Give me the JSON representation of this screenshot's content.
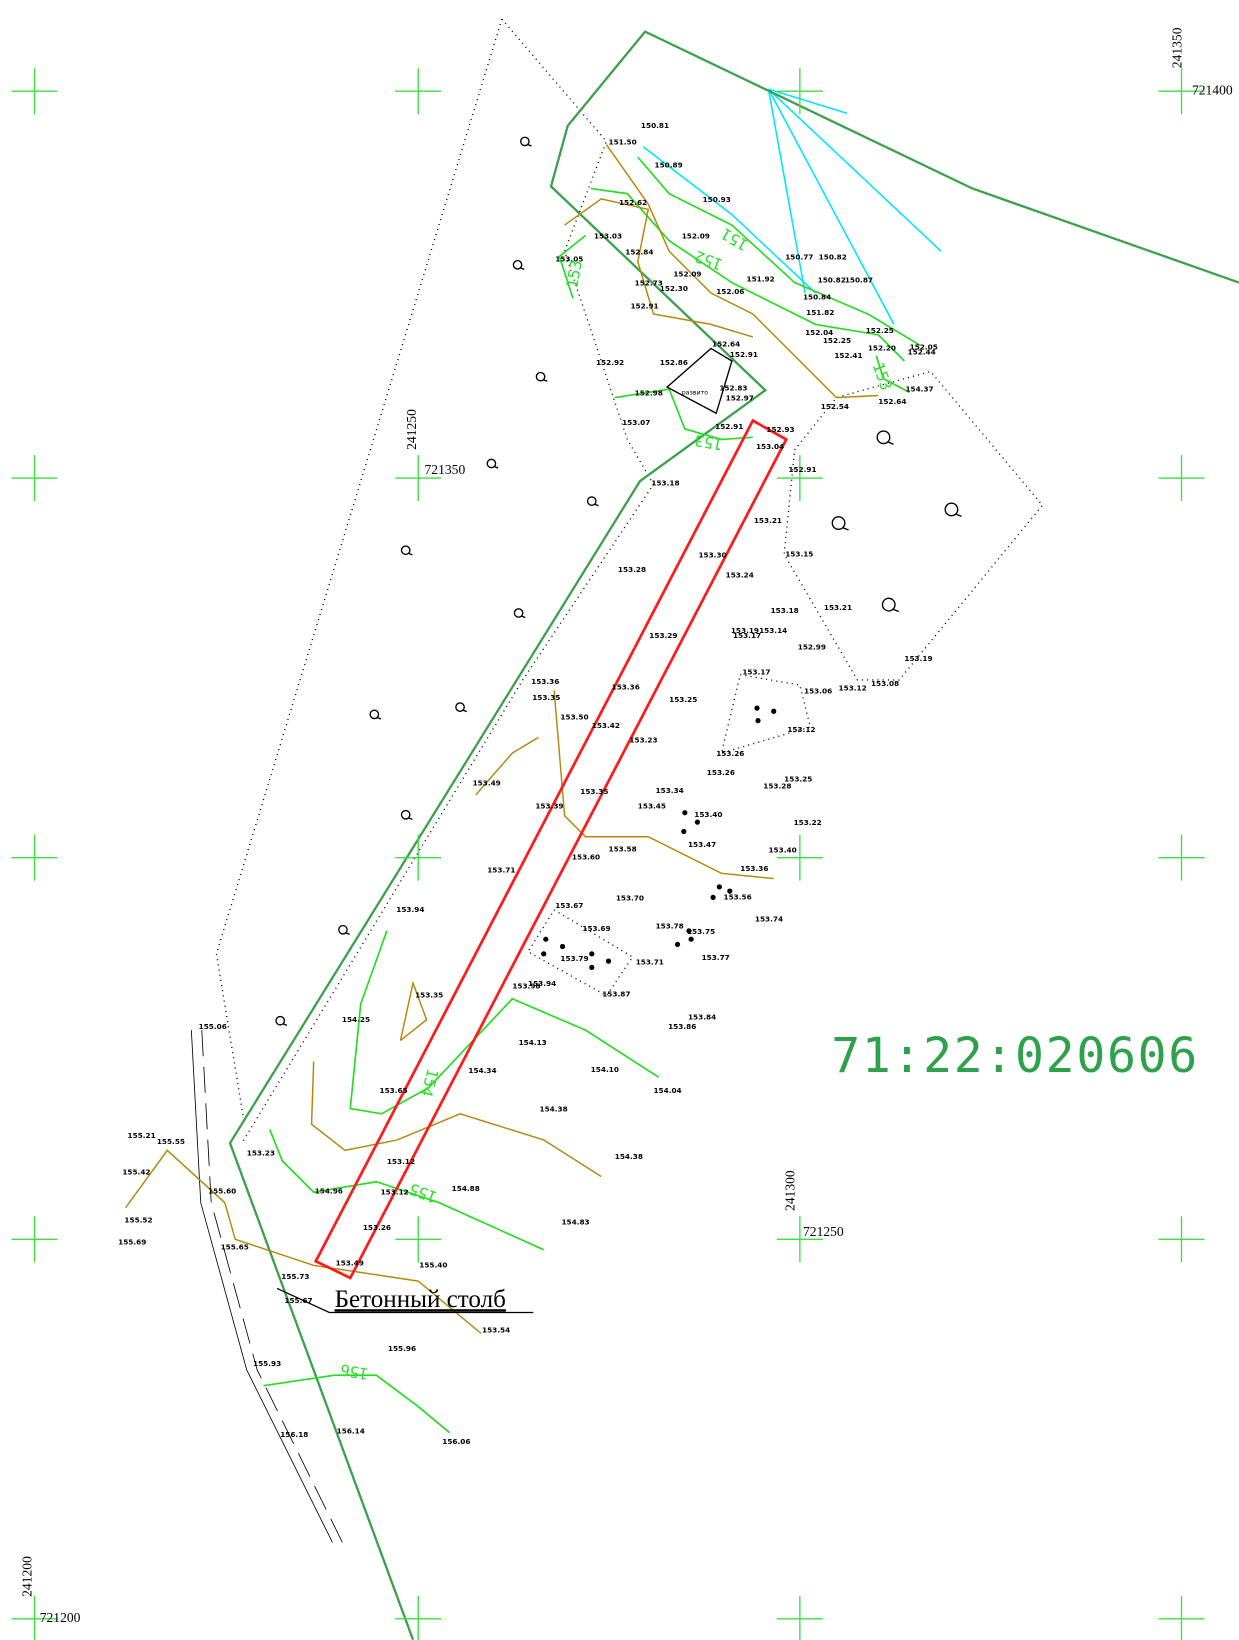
{
  "grid_labels": [
    "241350",
    "721400",
    "241250",
    "721350",
    "241300",
    "721250",
    "241200",
    "721200"
  ],
  "parcel_number": "71:22:020606",
  "annotation": "Бетонный столб",
  "polygon_label": "развито",
  "contour_labels": [
    "151",
    "152",
    "153",
    "153",
    "153",
    "154",
    "155",
    "156"
  ],
  "elevations": [
    "150.81",
    "151.50",
    "150.89",
    "150.93",
    "152.62",
    "152.09",
    "153.03",
    "152.84",
    "153.05",
    "150.77",
    "150.82",
    "152.09",
    "151.92",
    "152.73",
    "152.30",
    "150.82",
    "150.87",
    "152.06",
    "150.84",
    "152.91",
    "151.82",
    "152.04",
    "152.25",
    "152.25",
    "152.20",
    "152.05",
    "152.44",
    "152.64",
    "152.91",
    "152.92",
    "152.86",
    "152.41",
    "152.83",
    "152.98",
    "152.97",
    "154.37",
    "152.64",
    "152.54",
    "153.07",
    "152.91",
    "152.93",
    "153.04",
    "152.91",
    "153.18",
    "153.21",
    "153.15",
    "153.30",
    "153.28",
    "153.24",
    "153.18",
    "153.21",
    "153.19",
    "153.14",
    "153.17",
    "153.29",
    "152.99",
    "153.19",
    "153.17",
    "153.36",
    "153.36",
    "153.08",
    "153.12",
    "153.06",
    "153.35",
    "153.25",
    "153.50",
    "153.42",
    "153.12",
    "153.23",
    "153.26",
    "153.26",
    "153.49",
    "153.25",
    "153.28",
    "153.34",
    "153.35",
    "153.45",
    "153.40",
    "153.39",
    "153.22",
    "153.47",
    "153.58",
    "153.40",
    "153.60",
    "153.71",
    "153.36",
    "153.56",
    "153.70",
    "153.67",
    "153.94",
    "153.74",
    "153.78",
    "153.69",
    "153.75",
    "153.77",
    "153.79",
    "153.71",
    "153.94",
    "153.98",
    "153.87",
    "153.35",
    "153.84",
    "153.86",
    "155.06",
    "154.25",
    "154.13",
    "154.34",
    "154.10",
    "153.65",
    "154.04",
    "154.38",
    "155.21",
    "155.55",
    "154.38",
    "153.23",
    "155.42",
    "153.12",
    "154.96",
    "153.12",
    "154.88",
    "155.60",
    "153.26",
    "154.83",
    "155.52",
    "155.69",
    "155.65",
    "153.49",
    "155.40",
    "155.73",
    "155.67",
    "153.54",
    "155.96",
    "155.93",
    "156.18",
    "156.14",
    "156.06"
  ]
}
